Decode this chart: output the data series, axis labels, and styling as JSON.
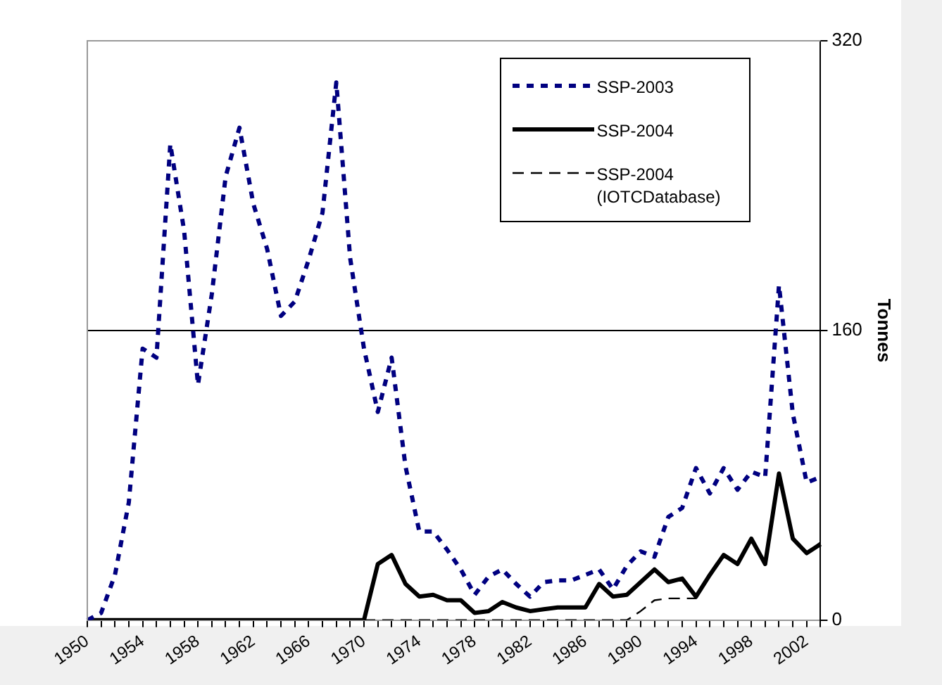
{
  "chart_data": {
    "type": "line",
    "ylabel": "Tonnes",
    "categories": [
      "1950",
      null,
      null,
      null,
      "1954",
      null,
      null,
      null,
      "1958",
      null,
      null,
      null,
      "1962",
      null,
      null,
      null,
      "1966",
      null,
      null,
      null,
      "1970",
      null,
      null,
      null,
      "1974",
      null,
      null,
      null,
      "1978",
      null,
      null,
      null,
      "1982",
      null,
      null,
      null,
      "1986",
      null,
      null,
      null,
      "1990",
      null,
      null,
      null,
      "1994",
      null,
      null,
      null,
      "1998",
      null,
      null,
      null,
      "2002",
      null
    ],
    "series": [
      {
        "name": "SSP-2003",
        "color": "#000080",
        "line_style": "dashed",
        "values": [
          0,
          4,
          25,
          65,
          150,
          145,
          263,
          215,
          130,
          180,
          245,
          272,
          230,
          205,
          168,
          176,
          199,
          225,
          297,
          200,
          150,
          115,
          145,
          85,
          49,
          49,
          39,
          28,
          14,
          24,
          28,
          20,
          13,
          21,
          22,
          22,
          25,
          28,
          17,
          30,
          38,
          35,
          57,
          62,
          84,
          70,
          84,
          72,
          82,
          79,
          185,
          114,
          76,
          79
        ]
      },
      {
        "name": "SSP-2004",
        "color": "#000000",
        "line_style": "solid",
        "values": [
          0,
          0,
          0,
          0,
          0,
          0,
          0,
          0,
          0,
          0,
          0,
          0,
          0,
          0,
          0,
          0,
          0,
          0,
          0,
          0,
          0,
          31,
          36,
          20,
          13,
          14,
          11,
          11,
          4,
          5,
          10,
          7,
          5,
          6,
          7,
          7,
          7,
          20,
          13,
          14,
          21,
          28,
          21,
          23,
          13,
          25,
          36,
          31,
          45,
          31,
          81,
          45,
          37,
          42
        ]
      },
      {
        "name": "SSP-2004 (IOTCDatabase)",
        "color": "#000000",
        "line_style": "dashed",
        "values": [
          null,
          null,
          null,
          null,
          null,
          null,
          null,
          null,
          null,
          null,
          null,
          null,
          null,
          null,
          null,
          null,
          null,
          null,
          null,
          null,
          0,
          0,
          0,
          0,
          0,
          0,
          0,
          0,
          0,
          0,
          0,
          0,
          0,
          0,
          0,
          0,
          0,
          0,
          0,
          0,
          5,
          11,
          12,
          12,
          12,
          25,
          35,
          31,
          44,
          31,
          80,
          45,
          37,
          43
        ]
      }
    ],
    "ylim": [
      0,
      320
    ],
    "yticks": [
      0,
      160,
      320
    ],
    "grid": "y",
    "legend": "top right",
    "marker": "none"
  }
}
